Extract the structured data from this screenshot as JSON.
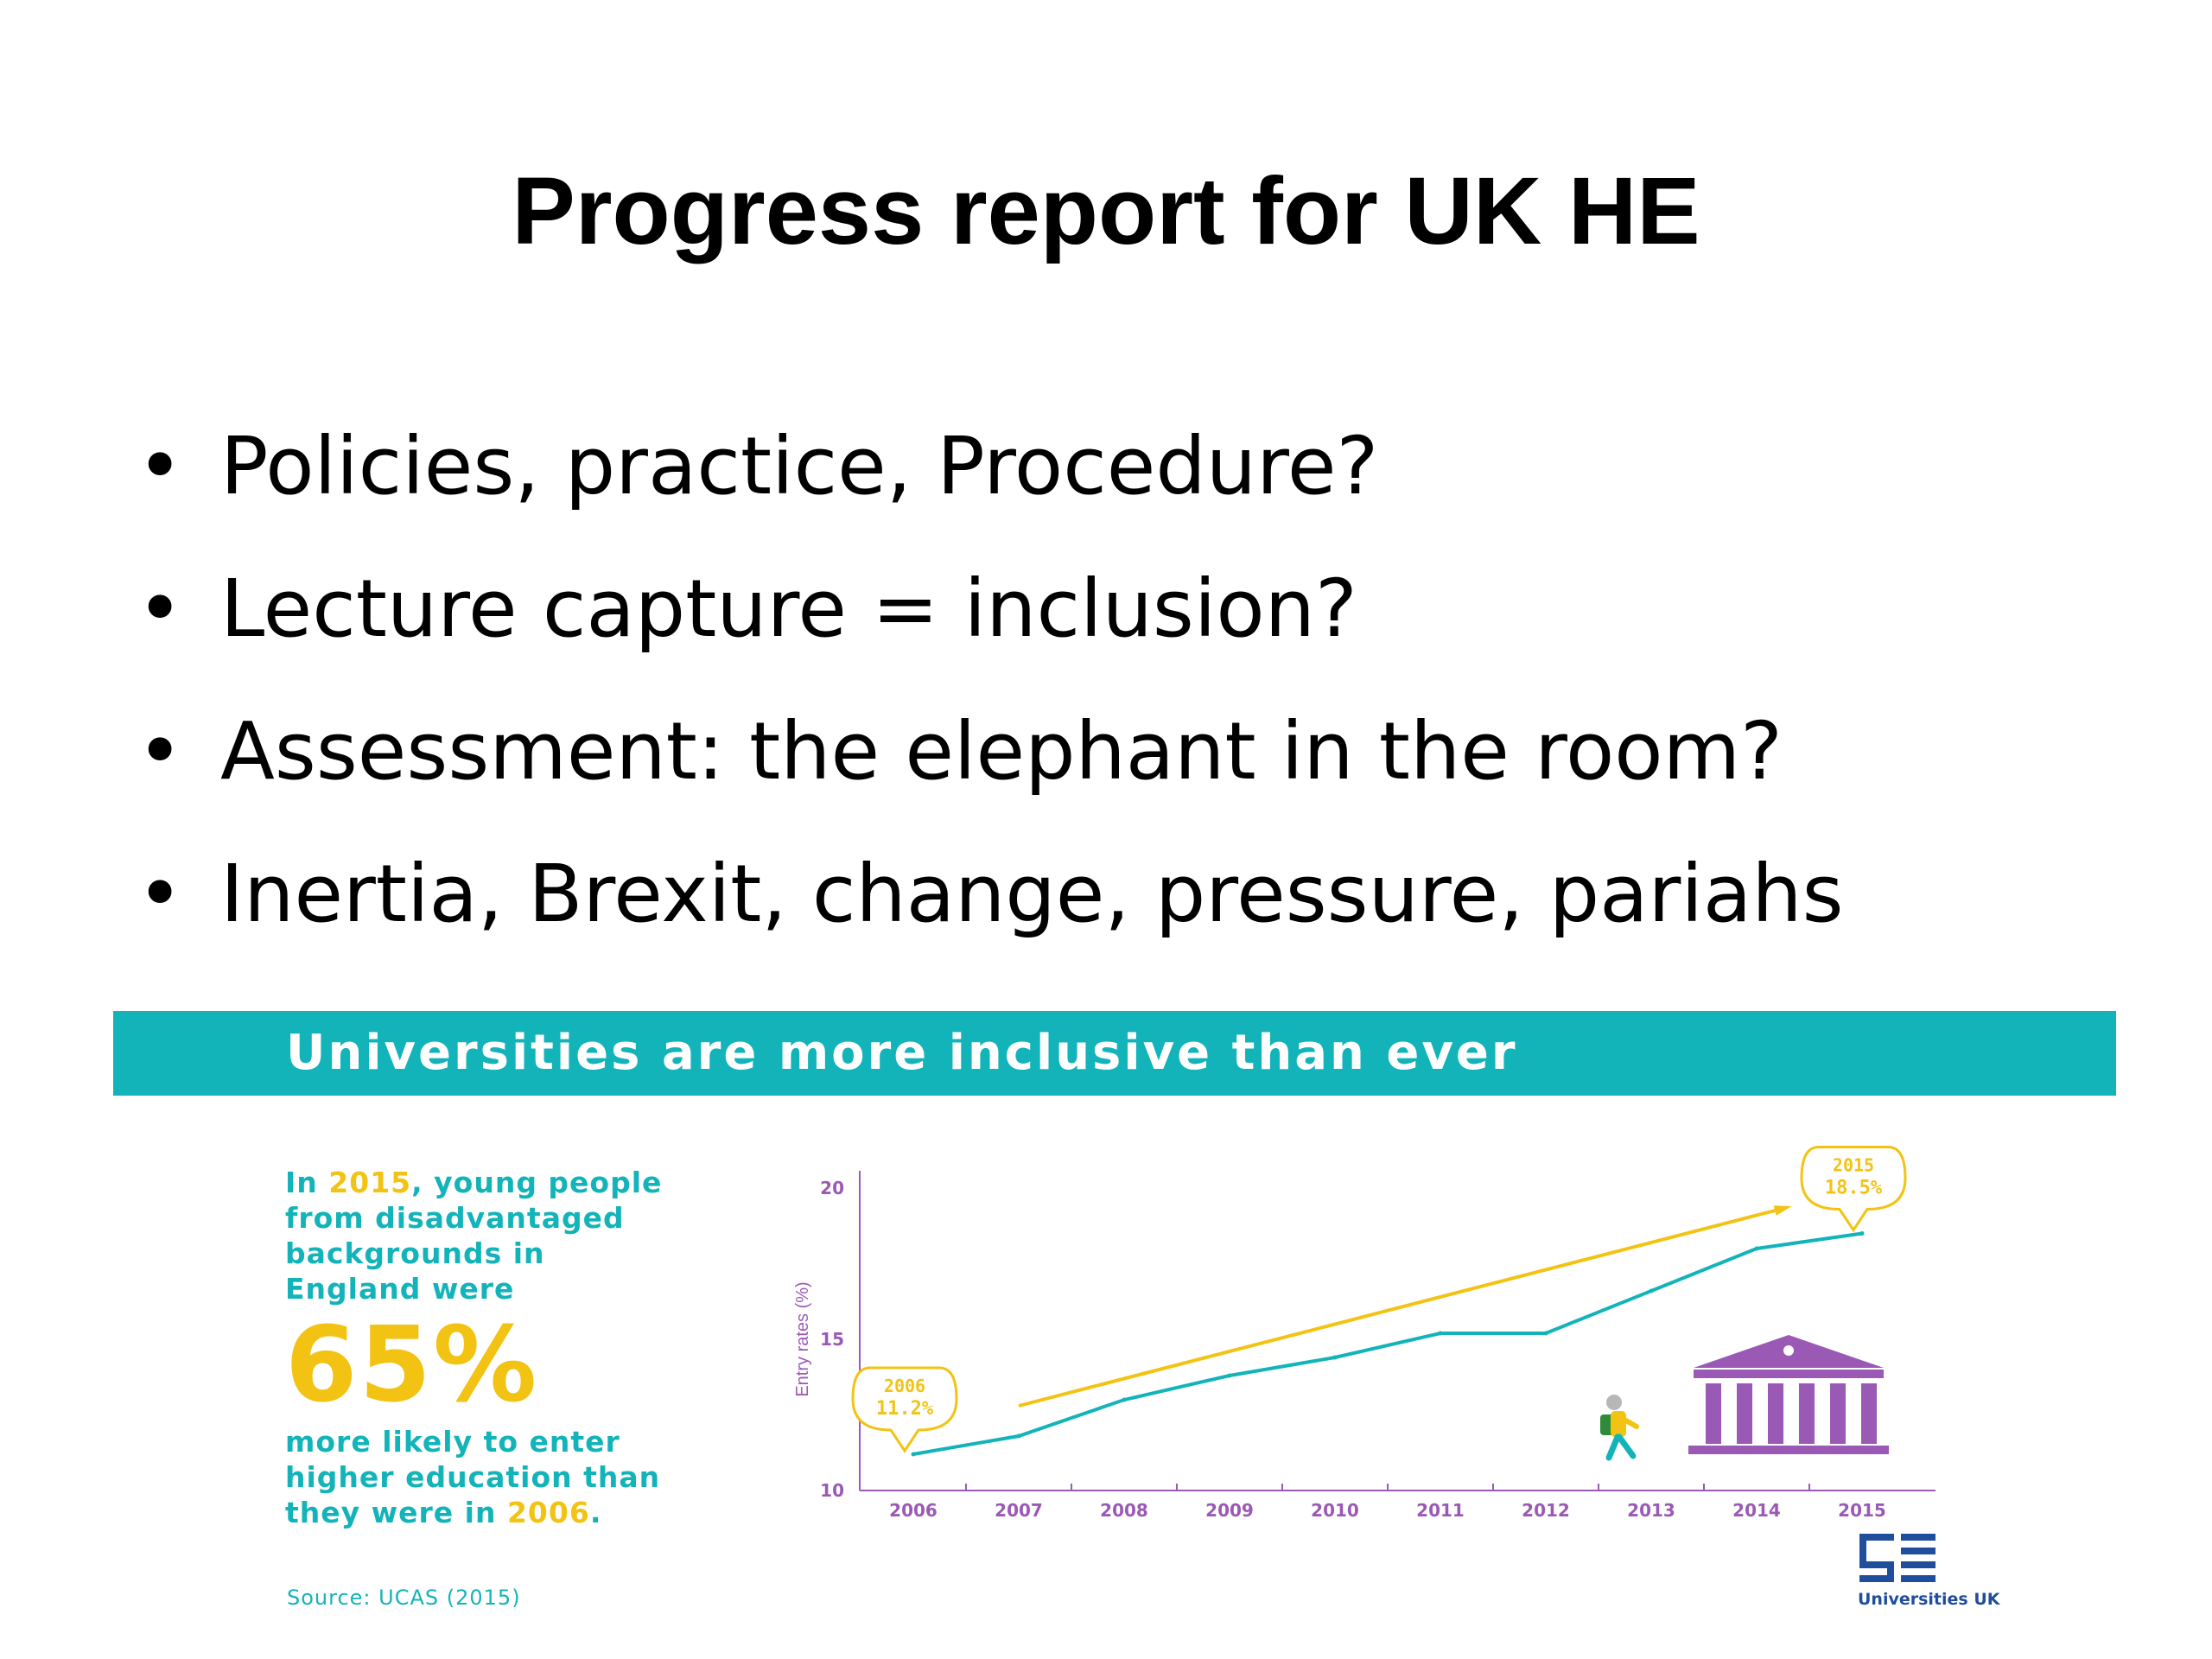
{
  "slide": {
    "title": "Progress report for UK HE",
    "bullets": [
      "Policies, practice, Procedure?",
      "Lecture capture = inclusion?",
      "Assessment: the elephant in the room?",
      "Inertia, Brexit, change, pressure, pariahs"
    ],
    "bullet_symbol": "•"
  },
  "infographic": {
    "banner": "Universities are more inclusive than ever",
    "stat_pre": "In ",
    "stat_year": "2015",
    "stat_line1_rest": ", young people",
    "stat_line2": "from disadvantaged",
    "stat_line3": "backgrounds in",
    "stat_line4": "England were",
    "stat_big": "65%",
    "stat_after1": "more likely to enter",
    "stat_after2": "higher education than",
    "stat_after3": "they were in ",
    "stat_after_year": "2006",
    "stat_after_end": ".",
    "source": "Source: UCAS (2015)",
    "logo_text": "Universities UK",
    "colors": {
      "teal": "#13b4b9",
      "yellow": "#f3c313",
      "purple": "#9b59b6",
      "navy": "#1f4e9c"
    },
    "icons": [
      "student-walking-icon",
      "university-building-icon"
    ]
  },
  "chart_data": {
    "type": "line",
    "ylabel": "Entry rates (%)",
    "yticks": [
      10,
      15,
      20
    ],
    "ylim": [
      10,
      20
    ],
    "x": [
      "2006",
      "2007",
      "2008",
      "2009",
      "2010",
      "2011",
      "2012",
      "2013",
      "2014",
      "2015"
    ],
    "series": [
      {
        "values": [
          11.2,
          11.8,
          13.0,
          13.8,
          14.4,
          15.2,
          15.2,
          16.6,
          18.0,
          18.5
        ]
      }
    ],
    "trend_arrow": {
      "from": [
        2007,
        12.8
      ],
      "to": [
        2015,
        19.3
      ]
    },
    "callouts": [
      {
        "year": "2006",
        "value": "11.2%"
      },
      {
        "year": "2015",
        "value": "18.5%"
      }
    ]
  }
}
